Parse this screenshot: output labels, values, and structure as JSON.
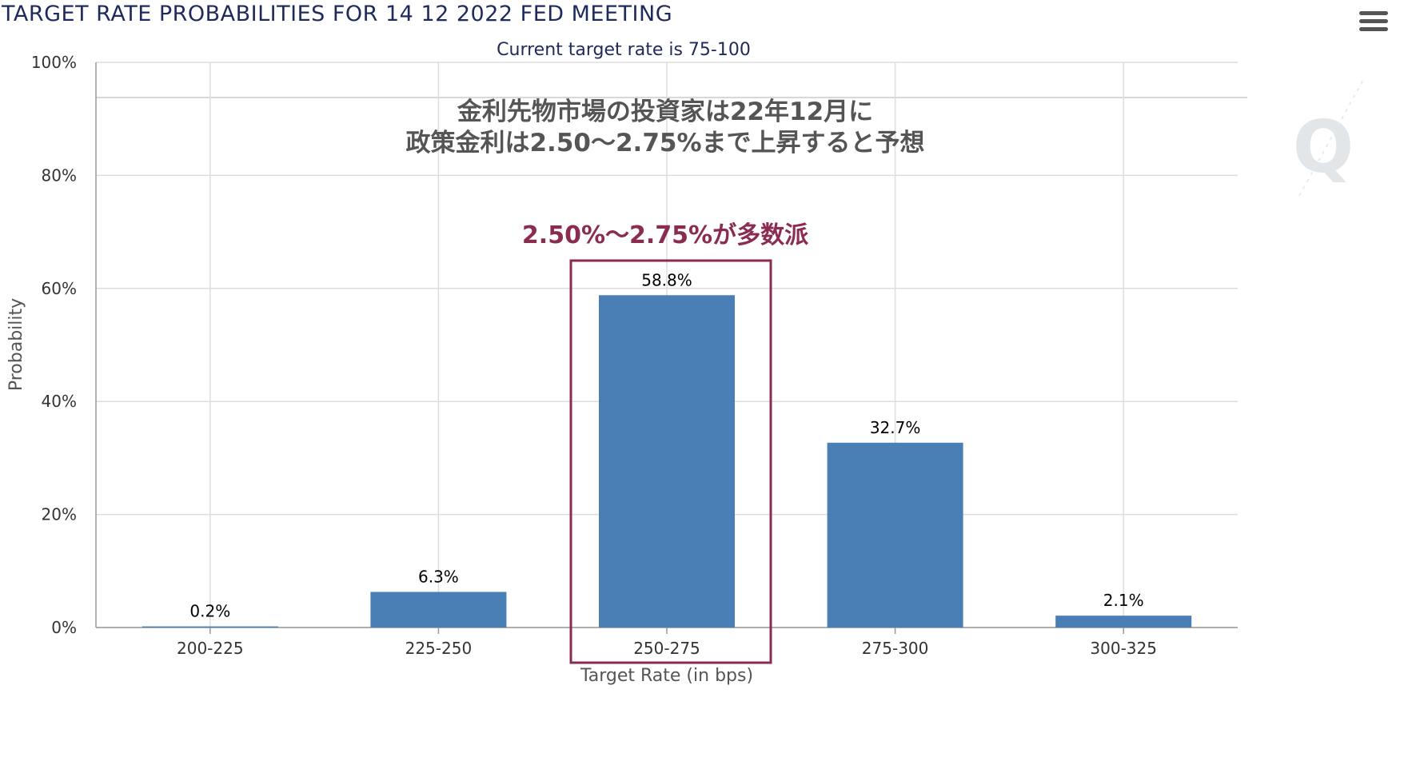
{
  "header": {
    "title": "TARGET RATE PROBABILITIES FOR 14 12 2022 FED MEETING",
    "menu_icon": "hamburger-menu-icon"
  },
  "chart_data": {
    "type": "bar",
    "title": "TARGET RATE PROBABILITIES FOR 14 12 2022 FED MEETING",
    "subtitle": "Current target rate is 75-100",
    "xlabel": "Target Rate (in bps)",
    "ylabel": "Probability",
    "categories": [
      "200-225",
      "225-250",
      "250-275",
      "275-300",
      "300-325"
    ],
    "values": [
      0.2,
      6.3,
      58.8,
      32.7,
      2.1
    ],
    "value_labels": [
      "0.2%",
      "6.3%",
      "58.8%",
      "32.7%",
      "2.1%"
    ],
    "ylim": [
      0,
      100
    ],
    "yticks": [
      0,
      20,
      40,
      60,
      80,
      100
    ],
    "ytick_labels": [
      "0%",
      "20%",
      "40%",
      "60%",
      "80%",
      "100%"
    ],
    "grid": true,
    "bar_color": "#4a7fb5",
    "highlight_category": "250-275",
    "annotations": {
      "line1": "金利先物市場の投資家は22年12月に",
      "line2": "政策金利は2.50〜2.75%まで上昇すると予想",
      "highlight": "2.50%〜2.75%が多数派",
      "highlight_color": "#8a2b52"
    }
  }
}
